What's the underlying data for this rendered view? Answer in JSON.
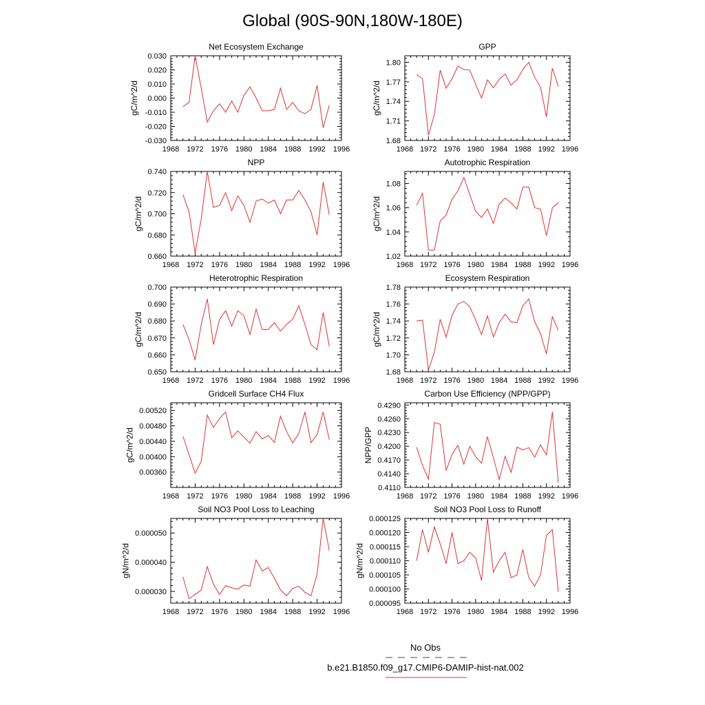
{
  "page_title": "Global (90S-90N,180W-180E)",
  "legend": {
    "obs_label": "No Obs",
    "obs_color": "#3333cc",
    "model_label": "b.e21.B1850.f09_g17.CMIP6-DAMIP-hist-nat.002",
    "model_color": "#e03030"
  },
  "chart_data": [
    {
      "type": "line",
      "title": "Net Ecosystem Exchange",
      "ylabel": "gC/m^2/d",
      "xlim": [
        1968,
        1996
      ],
      "xticks": [
        "1968",
        "1972",
        "1976",
        "1980",
        "1984",
        "1988",
        "1992",
        "1996"
      ],
      "ylim": [
        -0.03,
        0.03
      ],
      "yticks": [
        "-0.030",
        "-0.020",
        "-0.010",
        "0.000",
        "0.010",
        "0.020",
        "0.030"
      ],
      "color": "#e03030",
      "x": [
        1970,
        1971,
        1972,
        1973,
        1974,
        1975,
        1976,
        1977,
        1978,
        1979,
        1980,
        1981,
        1982,
        1983,
        1984,
        1985,
        1986,
        1987,
        1988,
        1989,
        1990,
        1991,
        1992,
        1993,
        1994
      ],
      "y": [
        -0.006,
        -0.003,
        0.03,
        0.007,
        -0.017,
        -0.009,
        -0.004,
        -0.01,
        -0.002,
        -0.01,
        0.002,
        0.008,
        0.0,
        -0.009,
        -0.009,
        -0.008,
        0.007,
        -0.008,
        -0.003,
        -0.009,
        -0.011,
        -0.008,
        0.009,
        -0.021,
        -0.005
      ]
    },
    {
      "type": "line",
      "title": "GPP",
      "ylabel": "gC/m^2/d",
      "xlim": [
        1968,
        1996
      ],
      "xticks": [
        "1968",
        "1972",
        "1976",
        "1980",
        "1984",
        "1988",
        "1992",
        "1996"
      ],
      "ylim": [
        1.68,
        1.81
      ],
      "yticks": [
        "1.68",
        "1.71",
        "1.74",
        "1.77",
        "1.80"
      ],
      "color": "#e03030",
      "x": [
        1970,
        1971,
        1972,
        1973,
        1974,
        1975,
        1976,
        1977,
        1978,
        1979,
        1980,
        1981,
        1982,
        1983,
        1984,
        1985,
        1986,
        1987,
        1988,
        1989,
        1990,
        1991,
        1992,
        1993,
        1994
      ],
      "y": [
        1.781,
        1.775,
        1.688,
        1.72,
        1.788,
        1.76,
        1.775,
        1.794,
        1.789,
        1.788,
        1.766,
        1.745,
        1.773,
        1.761,
        1.774,
        1.782,
        1.765,
        1.773,
        1.789,
        1.8,
        1.777,
        1.762,
        1.716,
        1.791,
        1.763
      ]
    },
    {
      "type": "line",
      "title": "NPP",
      "ylabel": "gC/m^2/d",
      "xlim": [
        1968,
        1996
      ],
      "xticks": [
        "1968",
        "1972",
        "1976",
        "1980",
        "1984",
        "1988",
        "1992",
        "1996"
      ],
      "ylim": [
        0.66,
        0.74
      ],
      "yticks": [
        "0.660",
        "0.680",
        "0.700",
        "0.720",
        "0.740"
      ],
      "color": "#e03030",
      "x": [
        1970,
        1971,
        1972,
        1973,
        1974,
        1975,
        1976,
        1977,
        1978,
        1979,
        1980,
        1981,
        1982,
        1983,
        1984,
        1985,
        1986,
        1987,
        1988,
        1989,
        1990,
        1991,
        1992,
        1993,
        1994
      ],
      "y": [
        0.718,
        0.702,
        0.663,
        0.695,
        0.74,
        0.706,
        0.708,
        0.72,
        0.703,
        0.717,
        0.708,
        0.692,
        0.712,
        0.714,
        0.71,
        0.713,
        0.7,
        0.713,
        0.713,
        0.722,
        0.713,
        0.702,
        0.68,
        0.73,
        0.699
      ]
    },
    {
      "type": "line",
      "title": "Autotrophic Respiration",
      "ylabel": "gC/m^2/d",
      "xlim": [
        1968,
        1996
      ],
      "xticks": [
        "1968",
        "1972",
        "1976",
        "1980",
        "1984",
        "1988",
        "1992",
        "1996"
      ],
      "ylim": [
        1.02,
        1.09
      ],
      "yticks": [
        "1.02",
        "1.04",
        "1.06",
        "1.08"
      ],
      "color": "#e03030",
      "x": [
        1970,
        1971,
        1972,
        1973,
        1974,
        1975,
        1976,
        1977,
        1978,
        1979,
        1980,
        1981,
        1982,
        1983,
        1984,
        1985,
        1986,
        1987,
        1988,
        1989,
        1990,
        1991,
        1992,
        1993,
        1994
      ],
      "y": [
        1.062,
        1.072,
        1.025,
        1.025,
        1.049,
        1.054,
        1.067,
        1.074,
        1.085,
        1.071,
        1.057,
        1.052,
        1.059,
        1.047,
        1.063,
        1.068,
        1.064,
        1.059,
        1.077,
        1.077,
        1.06,
        1.059,
        1.037,
        1.06,
        1.064
      ]
    },
    {
      "type": "line",
      "title": "Heterotrophic Respiration",
      "ylabel": "gC/m^2/d",
      "xlim": [
        1968,
        1996
      ],
      "xticks": [
        "1968",
        "1972",
        "1976",
        "1980",
        "1984",
        "1988",
        "1992",
        "1996"
      ],
      "ylim": [
        0.65,
        0.7
      ],
      "yticks": [
        "0.650",
        "0.660",
        "0.670",
        "0.680",
        "0.690",
        "0.700"
      ],
      "color": "#e03030",
      "x": [
        1970,
        1971,
        1972,
        1973,
        1974,
        1975,
        1976,
        1977,
        1978,
        1979,
        1980,
        1981,
        1982,
        1983,
        1984,
        1985,
        1986,
        1987,
        1988,
        1989,
        1990,
        1991,
        1992,
        1993,
        1994
      ],
      "y": [
        0.678,
        0.669,
        0.657,
        0.678,
        0.693,
        0.666,
        0.681,
        0.686,
        0.677,
        0.686,
        0.683,
        0.672,
        0.687,
        0.675,
        0.675,
        0.679,
        0.674,
        0.678,
        0.681,
        0.689,
        0.678,
        0.666,
        0.663,
        0.685,
        0.665
      ]
    },
    {
      "type": "line",
      "title": "Ecosystem Respiration",
      "ylabel": "gC/m^2/d",
      "xlim": [
        1968,
        1996
      ],
      "xticks": [
        "1968",
        "1972",
        "1976",
        "1980",
        "1984",
        "1988",
        "1992",
        "1996"
      ],
      "ylim": [
        1.68,
        1.78
      ],
      "yticks": [
        "1.68",
        "1.70",
        "1.72",
        "1.74",
        "1.76",
        "1.78"
      ],
      "color": "#e03030",
      "x": [
        1970,
        1971,
        1972,
        1973,
        1974,
        1975,
        1976,
        1977,
        1978,
        1979,
        1980,
        1981,
        1982,
        1983,
        1984,
        1985,
        1986,
        1987,
        1988,
        1989,
        1990,
        1991,
        1992,
        1993,
        1994
      ],
      "y": [
        1.74,
        1.741,
        1.682,
        1.703,
        1.742,
        1.721,
        1.747,
        1.76,
        1.763,
        1.757,
        1.741,
        1.724,
        1.746,
        1.721,
        1.738,
        1.748,
        1.739,
        1.738,
        1.758,
        1.766,
        1.739,
        1.725,
        1.701,
        1.745,
        1.729
      ]
    },
    {
      "type": "line",
      "title": "Gridcell Surface CH4 Flux",
      "ylabel": "gC/m^2/d",
      "xlim": [
        1968,
        1996
      ],
      "xticks": [
        "1968",
        "1972",
        "1976",
        "1980",
        "1984",
        "1988",
        "1992",
        "1996"
      ],
      "ylim": [
        0.0032,
        0.0054
      ],
      "yticks": [
        "0.00360",
        "0.00400",
        "0.00440",
        "0.00480",
        "0.00520"
      ],
      "color": "#e03030",
      "x": [
        1970,
        1971,
        1972,
        1973,
        1974,
        1975,
        1976,
        1977,
        1978,
        1979,
        1980,
        1981,
        1982,
        1983,
        1984,
        1985,
        1986,
        1987,
        1988,
        1989,
        1990,
        1991,
        1992,
        1993,
        1994
      ],
      "y": [
        0.00453,
        0.00405,
        0.00357,
        0.00388,
        0.00508,
        0.00476,
        0.00499,
        0.00516,
        0.00449,
        0.00467,
        0.00451,
        0.00435,
        0.00465,
        0.00446,
        0.00455,
        0.00437,
        0.00505,
        0.00465,
        0.00436,
        0.0046,
        0.00516,
        0.00436,
        0.00457,
        0.00516,
        0.00444
      ]
    },
    {
      "type": "line",
      "title": "Carbon Use Efficiency (NPP/GPP)",
      "ylabel": "NPP/GPP",
      "xlim": [
        1968,
        1996
      ],
      "xticks": [
        "1968",
        "1972",
        "1976",
        "1980",
        "1984",
        "1988",
        "1992",
        "1996"
      ],
      "ylim": [
        0.411,
        0.4295
      ],
      "yticks": [
        "0.4110",
        "0.4140",
        "0.4170",
        "0.4200",
        "0.4230",
        "0.4260",
        "0.4290"
      ],
      "color": "#e03030",
      "x": [
        1970,
        1971,
        1972,
        1973,
        1974,
        1975,
        1976,
        1977,
        1978,
        1979,
        1980,
        1981,
        1982,
        1983,
        1984,
        1985,
        1986,
        1987,
        1988,
        1989,
        1990,
        1991,
        1992,
        1993,
        1994
      ],
      "y": [
        0.4198,
        0.4158,
        0.4128,
        0.4252,
        0.4248,
        0.4147,
        0.4182,
        0.4202,
        0.4161,
        0.42,
        0.4177,
        0.4163,
        0.4221,
        0.4175,
        0.4127,
        0.4178,
        0.4143,
        0.4198,
        0.4192,
        0.4197,
        0.4176,
        0.4203,
        0.4181,
        0.4275,
        0.412
      ]
    },
    {
      "type": "line",
      "title": "Soil NO3 Pool Loss to Leaching",
      "ylabel": "gN/m^2/d",
      "xlim": [
        1968,
        1996
      ],
      "xticks": [
        "1968",
        "1972",
        "1976",
        "1980",
        "1984",
        "1988",
        "1992",
        "1996"
      ],
      "ylim": [
        2.6e-05,
        5.5e-05
      ],
      "yticks": [
        "0.000030",
        "0.000040",
        "0.000050"
      ],
      "color": "#e03030",
      "x": [
        1970,
        1971,
        1972,
        1973,
        1974,
        1975,
        1976,
        1977,
        1978,
        1979,
        1980,
        1981,
        1982,
        1983,
        1984,
        1985,
        1986,
        1987,
        1988,
        1989,
        1990,
        1991,
        1992,
        1993,
        1994
      ],
      "y": [
        3.5e-05,
        2.75e-05,
        2.9e-05,
        3.05e-05,
        3.85e-05,
        3.25e-05,
        2.9e-05,
        3.2e-05,
        3.12e-05,
        3.08e-05,
        3.22e-05,
        3.18e-05,
        4.08e-05,
        3.7e-05,
        3.82e-05,
        3.45e-05,
        3.05e-05,
        2.85e-05,
        3.1e-05,
        3.18e-05,
        2.97e-05,
        2.85e-05,
        3.6e-05,
        5.5e-05,
        4.4e-05
      ]
    },
    {
      "type": "line",
      "title": "Soil NO3 Pool Loss to Runoff",
      "ylabel": "gN/m^2/d",
      "xlim": [
        1968,
        1996
      ],
      "xticks": [
        "1968",
        "1972",
        "1976",
        "1980",
        "1984",
        "1988",
        "1992",
        "1996"
      ],
      "ylim": [
        9.5e-05,
        0.000125
      ],
      "yticks": [
        "0.000095",
        "0.000100",
        "0.000105",
        "0.000110",
        "0.000115",
        "0.000120",
        "0.000125"
      ],
      "color": "#e03030",
      "x": [
        1970,
        1971,
        1972,
        1973,
        1974,
        1975,
        1976,
        1977,
        1978,
        1979,
        1980,
        1981,
        1982,
        1983,
        1984,
        1985,
        1986,
        1987,
        1988,
        1989,
        1990,
        1991,
        1992,
        1993,
        1994
      ],
      "y": [
        0.00011,
        0.000121,
        0.000113,
        0.000122,
        0.000116,
        0.000109,
        0.00012,
        0.000109,
        0.00011,
        0.000113,
        0.000111,
        0.000103,
        0.000125,
        0.000106,
        0.00011,
        0.000113,
        0.000104,
        0.000105,
        0.000114,
        0.000104,
        0.000101,
        0.000105,
        0.000119,
        0.000121,
        9.9e-05
      ]
    }
  ]
}
